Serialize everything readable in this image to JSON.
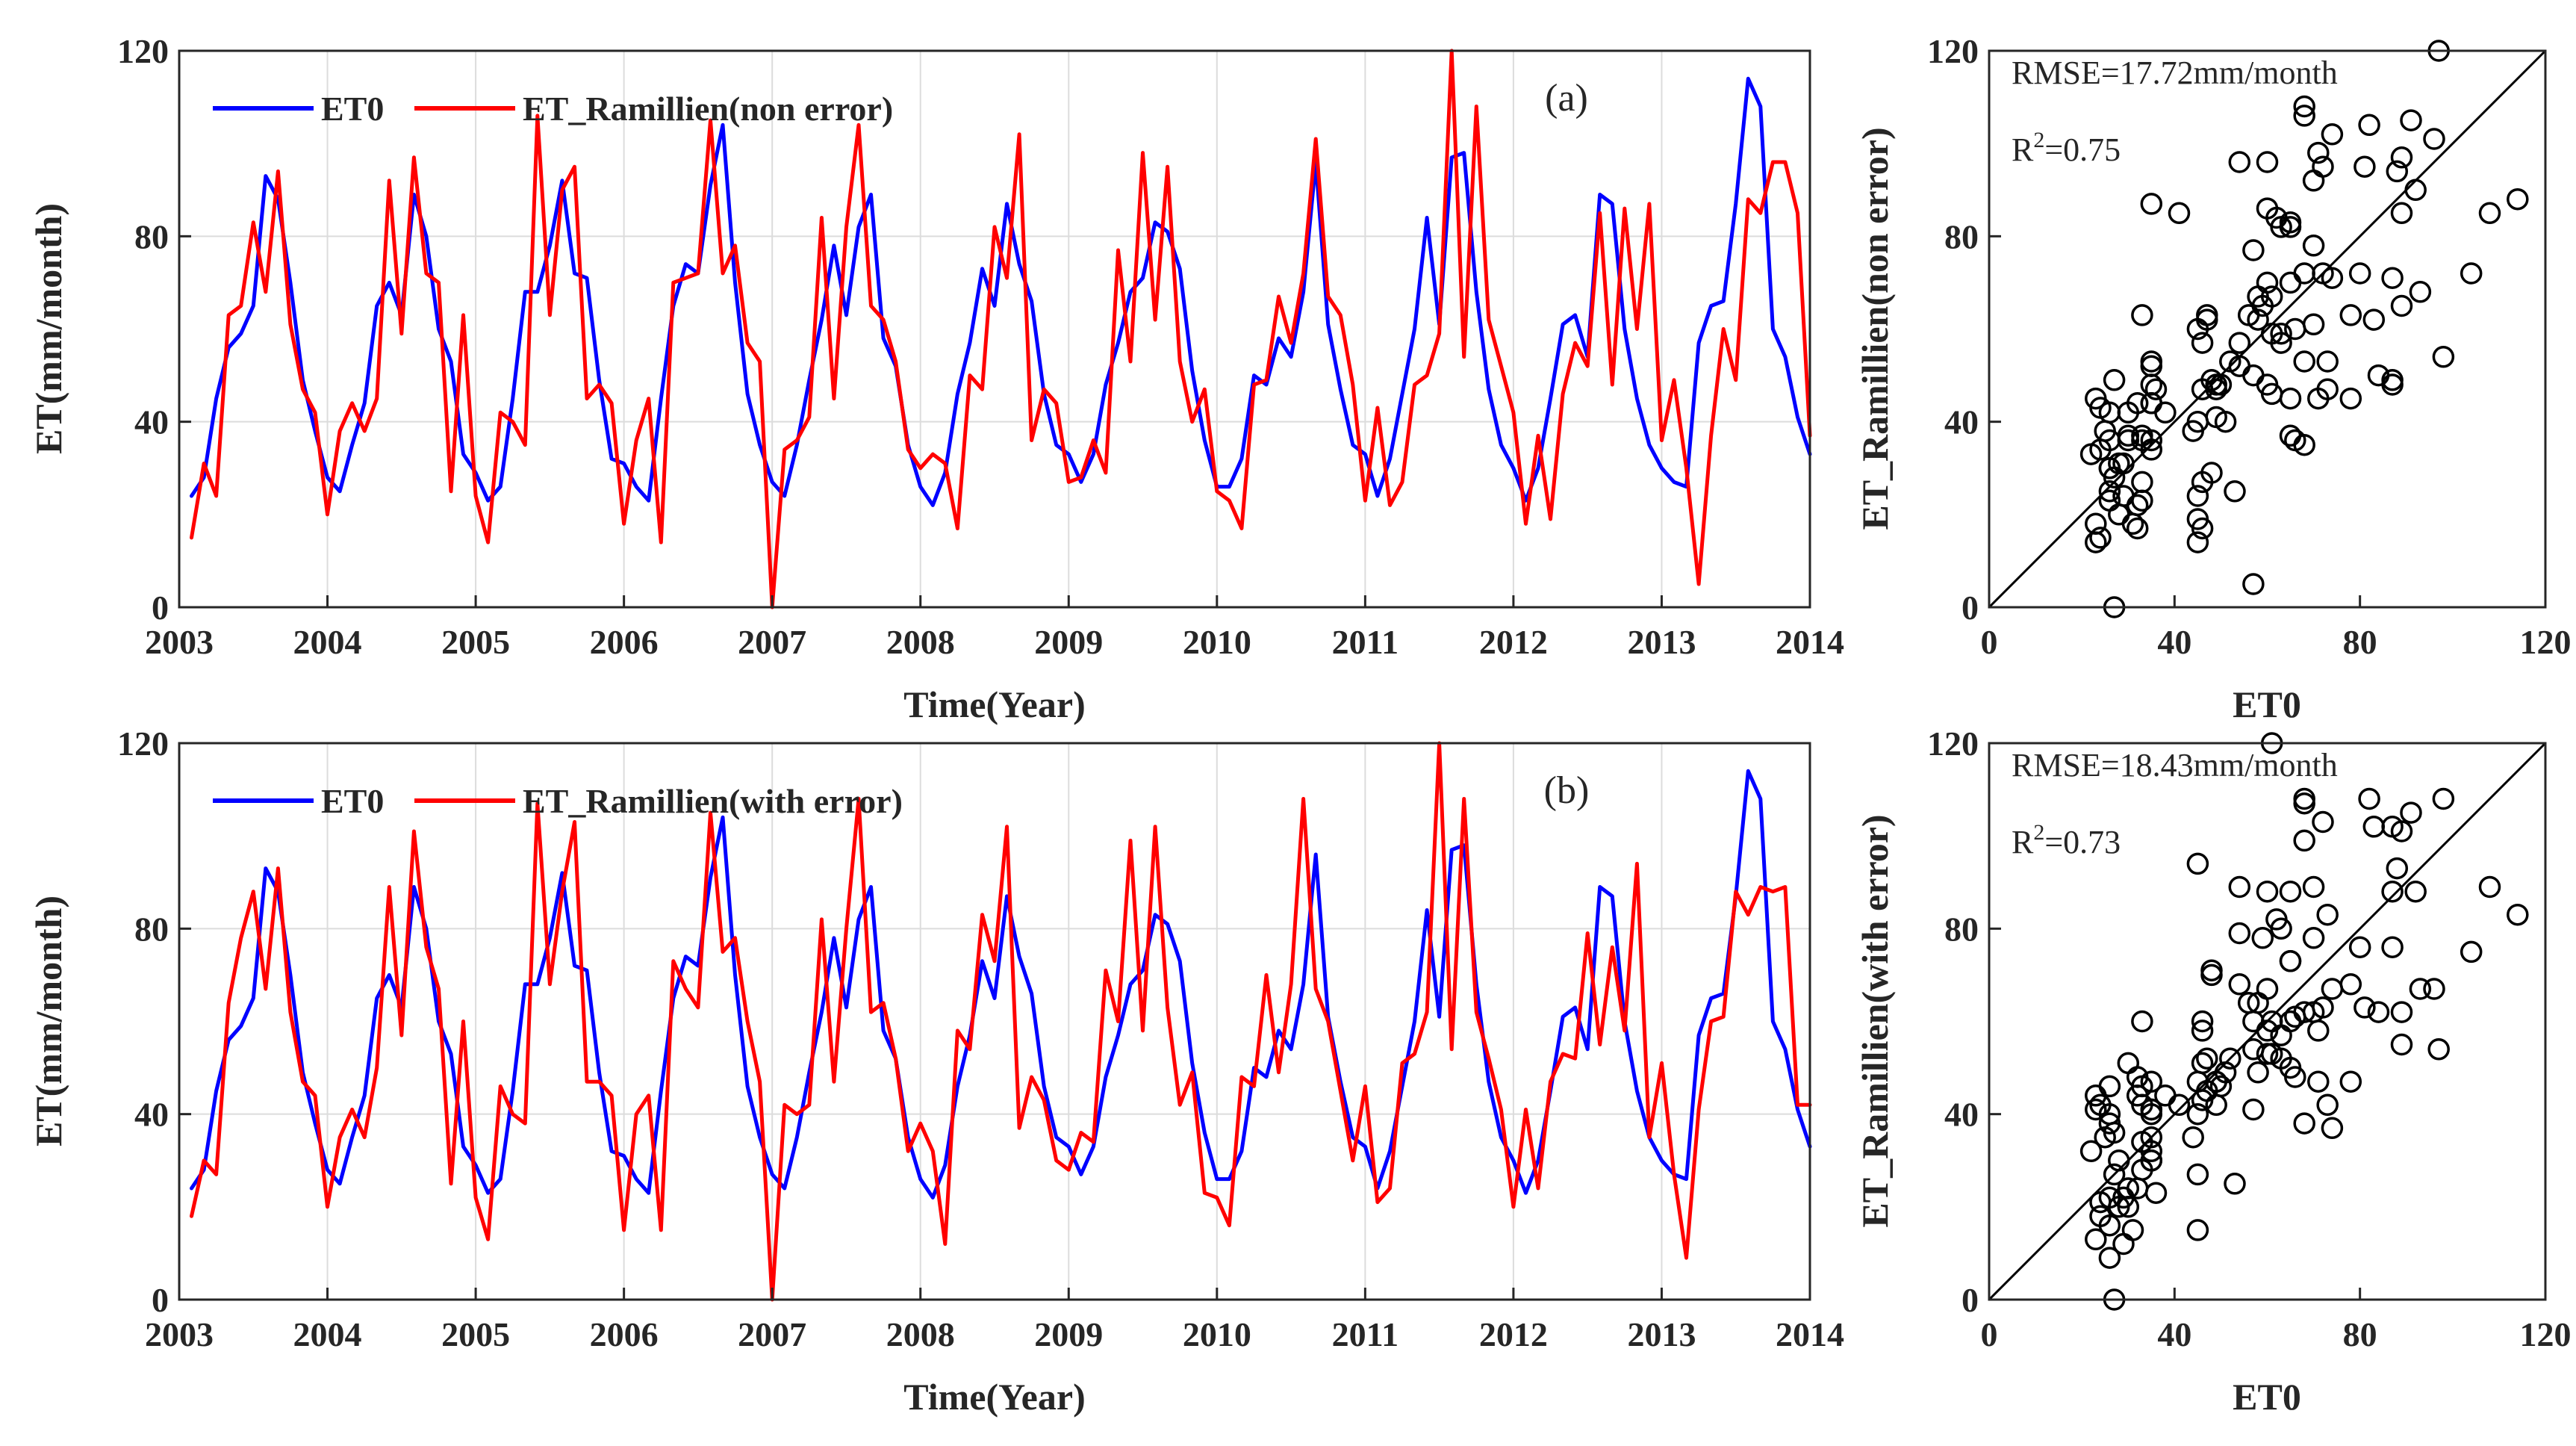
{
  "colors": {
    "et0": "#0000ff",
    "ramillien": "#ff0000",
    "scatter": "#000000",
    "axis": "#262626",
    "grid": "#dcdcdc"
  },
  "chart_data": [
    {
      "type": "line",
      "panel_tag": "(a)",
      "xlabel": "Time(Year)",
      "ylabel": "ET(mm/month)",
      "xlim": [
        2003,
        2014
      ],
      "ylim": [
        0,
        120
      ],
      "xticks": [
        "2003",
        "2004",
        "2005",
        "2006",
        "2007",
        "2008",
        "2009",
        "2010",
        "2011",
        "2012",
        "2013",
        "2014"
      ],
      "yticks": [
        "0",
        "40",
        "80",
        "120"
      ],
      "grid": true,
      "legend_position": "top-left",
      "series": [
        {
          "name": "ET0",
          "color": "#0000ff",
          "values": [
            24,
            28,
            45,
            56,
            59,
            65,
            93,
            88,
            70,
            49,
            38,
            28,
            25,
            35,
            44,
            65,
            70,
            63,
            89,
            80,
            60,
            53,
            33,
            29,
            23,
            26,
            45,
            68,
            68,
            78,
            92,
            72,
            71,
            49,
            32,
            31,
            26,
            23,
            45,
            65,
            74,
            72,
            91,
            104,
            70,
            46,
            35,
            27,
            24,
            35,
            49,
            62,
            78,
            63,
            82,
            89,
            58,
            52,
            35,
            26,
            22,
            29,
            46,
            57,
            73,
            65,
            87,
            74,
            66,
            46,
            35,
            33,
            27,
            33,
            48,
            57,
            68,
            71,
            83,
            81,
            73,
            51,
            36,
            26,
            26,
            32,
            50,
            48,
            58,
            54,
            68,
            96,
            61,
            47,
            35,
            33,
            24,
            32,
            46,
            60,
            84,
            61,
            97,
            98,
            68,
            47,
            35,
            30,
            23,
            30,
            45,
            61,
            63,
            54,
            89,
            87,
            60,
            45,
            35,
            30,
            27,
            26,
            57,
            65,
            66,
            87,
            114,
            108,
            60,
            54,
            41,
            33
          ]
        },
        {
          "name": "ET_Ramillien(non error)",
          "color": "#ff0000",
          "values": [
            15,
            31,
            24,
            63,
            65,
            83,
            68,
            94,
            61,
            47,
            42,
            20,
            38,
            44,
            38,
            45,
            92,
            59,
            97,
            72,
            70,
            25,
            63,
            24,
            14,
            42,
            40,
            35,
            106,
            63,
            90,
            95,
            45,
            48,
            44,
            18,
            36,
            45,
            14,
            70,
            71,
            72,
            105,
            72,
            78,
            57,
            53,
            0,
            34,
            36,
            41,
            84,
            45,
            82,
            104,
            65,
            62,
            53,
            34,
            30,
            33,
            31,
            17,
            50,
            47,
            82,
            71,
            102,
            36,
            47,
            44,
            27,
            28,
            36,
            29,
            77,
            53,
            98,
            62,
            95,
            53,
            40,
            47,
            25,
            23,
            17,
            48,
            49,
            67,
            57,
            72,
            101,
            67,
            63,
            48,
            23,
            43,
            22,
            27,
            48,
            50,
            59,
            122,
            54,
            108,
            62,
            52,
            42,
            18,
            37,
            19,
            46,
            57,
            52,
            85,
            48,
            86,
            60,
            87,
            36,
            49,
            30,
            5,
            37,
            60,
            49,
            88,
            85,
            96,
            96,
            85,
            37
          ]
        }
      ]
    },
    {
      "type": "line",
      "panel_tag": "(b)",
      "xlabel": "Time(Year)",
      "ylabel": "ET(mm/month)",
      "xlim": [
        2003,
        2014
      ],
      "ylim": [
        0,
        120
      ],
      "xticks": [
        "2003",
        "2004",
        "2005",
        "2006",
        "2007",
        "2008",
        "2009",
        "2010",
        "2011",
        "2012",
        "2013",
        "2014"
      ],
      "yticks": [
        "0",
        "40",
        "80",
        "120"
      ],
      "grid": true,
      "legend_position": "top-left",
      "series": [
        {
          "name": "ET0",
          "color": "#0000ff",
          "values": [
            24,
            28,
            45,
            56,
            59,
            65,
            93,
            88,
            70,
            49,
            38,
            28,
            25,
            35,
            44,
            65,
            70,
            63,
            89,
            80,
            60,
            53,
            33,
            29,
            23,
            26,
            45,
            68,
            68,
            78,
            92,
            72,
            71,
            49,
            32,
            31,
            26,
            23,
            45,
            65,
            74,
            72,
            91,
            104,
            70,
            46,
            35,
            27,
            24,
            35,
            49,
            62,
            78,
            63,
            82,
            89,
            58,
            52,
            35,
            26,
            22,
            29,
            46,
            57,
            73,
            65,
            87,
            74,
            66,
            46,
            35,
            33,
            27,
            33,
            48,
            57,
            68,
            71,
            83,
            81,
            73,
            51,
            36,
            26,
            26,
            32,
            50,
            48,
            58,
            54,
            68,
            96,
            61,
            47,
            35,
            33,
            24,
            32,
            46,
            60,
            84,
            61,
            97,
            98,
            68,
            47,
            35,
            30,
            23,
            30,
            45,
            61,
            63,
            54,
            89,
            87,
            60,
            45,
            35,
            30,
            27,
            26,
            57,
            65,
            66,
            87,
            114,
            108,
            60,
            54,
            41,
            33
          ]
        },
        {
          "name": "ET_Ramillien(with error)",
          "color": "#ff0000",
          "values": [
            18,
            30,
            27,
            64,
            78,
            88,
            67,
            93,
            62,
            47,
            44,
            20,
            35,
            41,
            35,
            50,
            89,
            57,
            101,
            76,
            67,
            25,
            60,
            22,
            13,
            46,
            40,
            38,
            107,
            68,
            88,
            103,
            47,
            47,
            44,
            15,
            40,
            44,
            15,
            73,
            67,
            63,
            105,
            75,
            78,
            60,
            47,
            0,
            42,
            40,
            42,
            82,
            47,
            80,
            108,
            62,
            64,
            52,
            32,
            38,
            32,
            12,
            58,
            54,
            83,
            73,
            102,
            37,
            48,
            43,
            30,
            28,
            36,
            34,
            71,
            60,
            99,
            58,
            102,
            63,
            42,
            49,
            23,
            22,
            16,
            48,
            46,
            70,
            49,
            68,
            108,
            67,
            60,
            45,
            30,
            46,
            21,
            24,
            51,
            53,
            62,
            122,
            54,
            108,
            62,
            52,
            41,
            20,
            41,
            24,
            47,
            53,
            52,
            79,
            55,
            76,
            58,
            94,
            35,
            51,
            27,
            9,
            41,
            60,
            61,
            88,
            83,
            89,
            88,
            89,
            42,
            42
          ]
        }
      ]
    },
    {
      "type": "scatter",
      "xlabel": "ET0",
      "ylabel": "ET_Ramillien(non error)",
      "xlim": [
        0,
        120
      ],
      "ylim": [
        0,
        120
      ],
      "xticks": [
        "0",
        "40",
        "80",
        "120"
      ],
      "yticks": [
        "0",
        "40",
        "80",
        "120"
      ],
      "one_to_one_line": true,
      "rmse_label": "RMSE=17.72mm/month",
      "r2_prefix": "R",
      "r2_sup": "2",
      "r2_value": "=0.75"
    },
    {
      "type": "scatter",
      "xlabel": "ET0",
      "ylabel": "ET_Ramillien(with error)",
      "xlim": [
        0,
        120
      ],
      "ylim": [
        0,
        120
      ],
      "xticks": [
        "0",
        "40",
        "80",
        "120"
      ],
      "yticks": [
        "0",
        "40",
        "80",
        "120"
      ],
      "one_to_one_line": true,
      "rmse_label": "RMSE=18.43mm/month",
      "r2_prefix": "R",
      "r2_sup": "2",
      "r2_value": "=0.73"
    }
  ]
}
